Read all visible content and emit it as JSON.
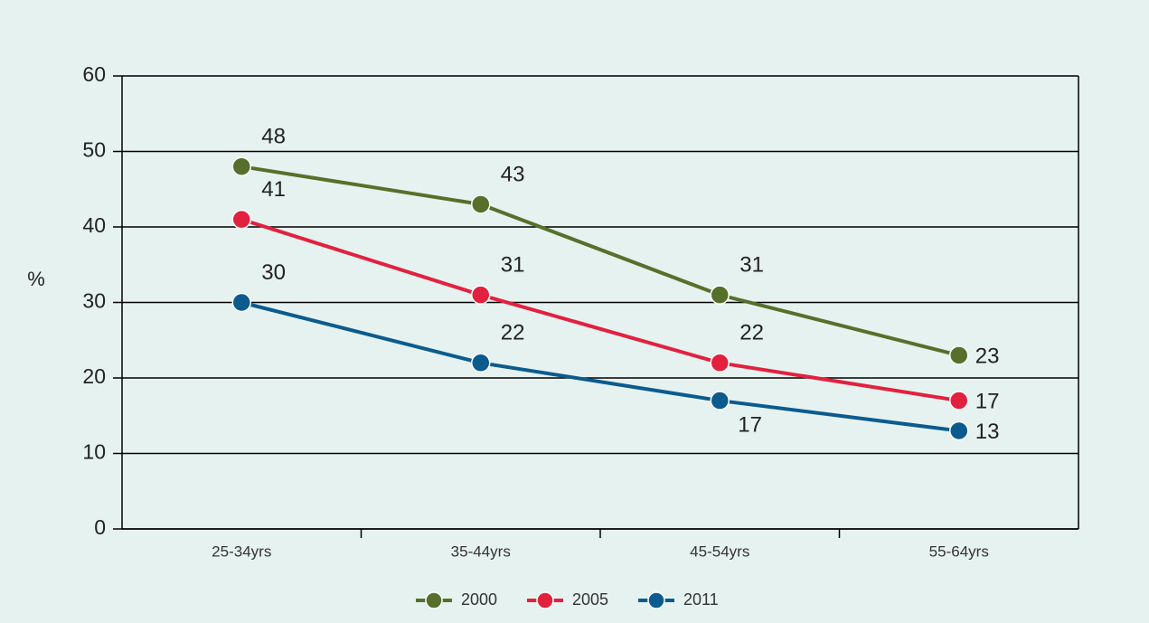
{
  "chart_data": {
    "type": "line",
    "y_label": "%",
    "categories": [
      "25-34yrs",
      "35-44yrs",
      "45-54yrs",
      "55-64yrs"
    ],
    "series": [
      {
        "name": "2000",
        "color": "#56702b",
        "values": [
          48,
          43,
          31,
          23
        ]
      },
      {
        "name": "2005",
        "color": "#e2213f",
        "values": [
          41,
          31,
          22,
          17
        ]
      },
      {
        "name": "2011",
        "color": "#0b5b8f",
        "values": [
          30,
          22,
          17,
          13
        ]
      }
    ],
    "ylim": [
      0,
      60
    ],
    "yticks": [
      0,
      10,
      20,
      30,
      40,
      50,
      60
    ],
    "grid": true,
    "legend": "bottom"
  }
}
